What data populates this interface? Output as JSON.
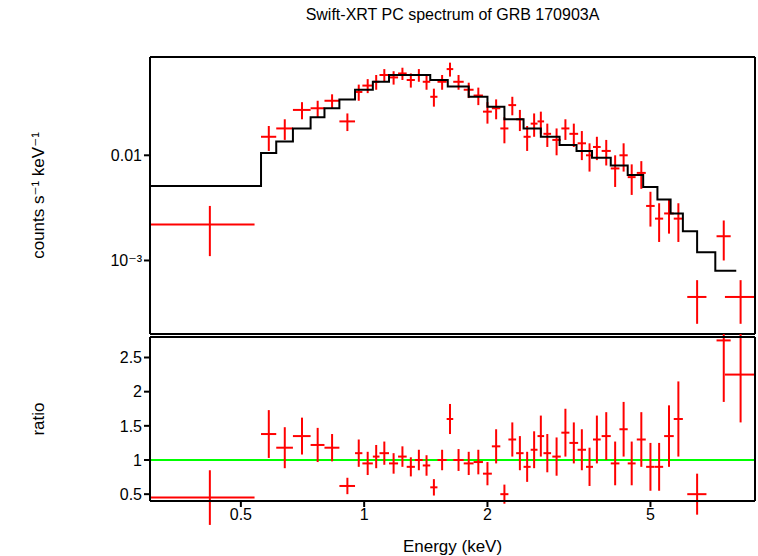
{
  "chart_data": [
    {
      "type": "scatter",
      "title": "Swift-XRT PC spectrum of GRB 170903A",
      "y_label": "counts s⁻¹ keV⁻¹",
      "log": true,
      "xlim": [
        0.3,
        9
      ],
      "xticks": [
        0.5,
        1,
        2,
        5
      ],
      "ylim": [
        0.0002,
        0.086
      ],
      "yticks": [
        {
          "value": 0.001,
          "label": "10⁻³"
        },
        0.01
      ],
      "tick_labels": "y",
      "grid": false,
      "series": [
        {
          "type": "scatter",
          "color": "#ff0000",
          "marker": "cross",
          "x": [
            0.42,
            0.585,
            0.64,
            0.705,
            0.77,
            0.835,
            0.91,
            0.97,
            1.02,
            1.07,
            1.12,
            1.18,
            1.24,
            1.3,
            1.36,
            1.42,
            1.48,
            1.55,
            1.62,
            1.7,
            1.8,
            1.9,
            2.0,
            2.1,
            2.2,
            2.3,
            2.4,
            2.5,
            2.6,
            2.7,
            2.8,
            2.95,
            3.1,
            3.25,
            3.4,
            3.55,
            3.7,
            3.9,
            4.1,
            4.3,
            4.5,
            4.75,
            5.0,
            5.25,
            5.55,
            5.85,
            6.5,
            7.55,
            8.3
          ],
          "x_err": [
            0.12,
            0.025,
            0.03,
            0.035,
            0.03,
            0.035,
            0.04,
            0.02,
            0.03,
            0.02,
            0.03,
            0.03,
            0.03,
            0.03,
            0.03,
            0.03,
            0.03,
            0.04,
            0.03,
            0.05,
            0.05,
            0.05,
            0.05,
            0.05,
            0.05,
            0.05,
            0.05,
            0.05,
            0.05,
            0.05,
            0.06,
            0.07,
            0.07,
            0.08,
            0.08,
            0.07,
            0.08,
            0.1,
            0.1,
            0.1,
            0.1,
            0.12,
            0.12,
            0.12,
            0.15,
            0.15,
            0.35,
            0.3,
            0.7
          ],
          "values": [
            0.0022,
            0.015,
            0.018,
            0.027,
            0.028,
            0.033,
            0.021,
            0.04,
            0.046,
            0.05,
            0.058,
            0.055,
            0.06,
            0.052,
            0.058,
            0.05,
            0.036,
            0.05,
            0.066,
            0.05,
            0.042,
            0.037,
            0.026,
            0.028,
            0.018,
            0.03,
            0.022,
            0.015,
            0.02,
            0.021,
            0.016,
            0.014,
            0.018,
            0.016,
            0.013,
            0.01,
            0.012,
            0.011,
            0.0075,
            0.01,
            0.0062,
            0.0068,
            0.0033,
            0.0025,
            0.0028,
            0.0025,
            0.00045,
            0.0017,
            0.00045
          ],
          "y_err": [
            0.0011,
            0.004,
            0.004,
            0.005,
            0.005,
            0.005,
            0.004,
            0.007,
            0.007,
            0.008,
            0.008,
            0.008,
            0.008,
            0.008,
            0.008,
            0.008,
            0.007,
            0.008,
            0.01,
            0.008,
            0.007,
            0.007,
            0.006,
            0.006,
            0.005,
            0.006,
            0.005,
            0.004,
            0.005,
            0.005,
            0.004,
            0.004,
            0.004,
            0.004,
            0.004,
            0.003,
            0.003,
            0.003,
            0.0025,
            0.003,
            0.002,
            0.002,
            0.0012,
            0.001,
            0.001,
            0.001,
            0.0002,
            0.0007,
            0.0002
          ]
        },
        {
          "type": "step",
          "color": "#000000",
          "line_style": "solid",
          "bins": [
            0.3,
            0.56,
            0.61,
            0.67,
            0.74,
            0.8,
            0.87,
            0.95,
            1.05,
            1.15,
            1.3,
            1.45,
            1.6,
            1.8,
            2.0,
            2.2,
            2.45,
            2.7,
            3.0,
            3.3,
            3.6,
            4.0,
            4.4,
            4.8,
            5.2,
            5.6,
            6.0,
            6.5,
            7.2,
            8.1
          ],
          "values": [
            0.0051,
            0.0105,
            0.0135,
            0.018,
            0.023,
            0.028,
            0.034,
            0.042,
            0.05,
            0.058,
            0.058,
            0.052,
            0.045,
            0.036,
            0.029,
            0.022,
            0.018,
            0.015,
            0.0125,
            0.011,
            0.0095,
            0.008,
            0.0065,
            0.005,
            0.0038,
            0.0028,
            0.0019,
            0.0012,
            0.0008
          ]
        }
      ]
    },
    {
      "type": "scatter",
      "x_label": "Energy (keV)",
      "y_label": "ratio",
      "log": "x",
      "xlim": [
        0.3,
        9
      ],
      "xticks": [
        0.5,
        1,
        2,
        5
      ],
      "ylim": [
        0.4,
        2.8
      ],
      "yticks": [
        0.5,
        1,
        1.5,
        2,
        2.5
      ],
      "grid": false,
      "reference_line": {
        "value": 1,
        "color": "#00ff00"
      },
      "series": [
        {
          "type": "scatter",
          "color": "#ff0000",
          "marker": "cross",
          "x": [
            0.42,
            0.585,
            0.64,
            0.705,
            0.77,
            0.835,
            0.91,
            0.97,
            1.02,
            1.07,
            1.12,
            1.18,
            1.24,
            1.3,
            1.36,
            1.42,
            1.48,
            1.55,
            1.62,
            1.7,
            1.8,
            1.9,
            2.0,
            2.1,
            2.2,
            2.3,
            2.4,
            2.5,
            2.6,
            2.7,
            2.8,
            2.95,
            3.1,
            3.25,
            3.4,
            3.55,
            3.7,
            3.9,
            4.1,
            4.3,
            4.5,
            4.75,
            5.0,
            5.25,
            5.55,
            5.85,
            6.5,
            7.55,
            8.3
          ],
          "x_err": [
            0.12,
            0.025,
            0.03,
            0.035,
            0.03,
            0.035,
            0.04,
            0.02,
            0.03,
            0.02,
            0.03,
            0.03,
            0.03,
            0.03,
            0.03,
            0.03,
            0.03,
            0.04,
            0.03,
            0.05,
            0.05,
            0.05,
            0.05,
            0.05,
            0.05,
            0.05,
            0.05,
            0.05,
            0.05,
            0.05,
            0.06,
            0.07,
            0.07,
            0.08,
            0.08,
            0.07,
            0.08,
            0.1,
            0.1,
            0.1,
            0.1,
            0.12,
            0.12,
            0.12,
            0.15,
            0.15,
            0.35,
            0.3,
            0.7
          ],
          "values": [
            0.45,
            1.38,
            1.18,
            1.35,
            1.22,
            1.18,
            0.62,
            1.1,
            0.95,
            1.05,
            1.1,
            0.95,
            1.05,
            0.9,
            1.0,
            0.92,
            0.6,
            1.0,
            1.6,
            1.0,
            0.95,
            0.97,
            0.8,
            1.2,
            0.5,
            1.3,
            1.1,
            0.9,
            1.15,
            1.35,
            1.1,
            1.05,
            1.4,
            1.25,
            1.15,
            0.9,
            1.3,
            1.35,
            0.95,
            1.45,
            0.95,
            1.3,
            0.9,
            0.9,
            1.35,
            1.6,
            0.5,
            2.75,
            2.25
          ],
          "y_err": [
            0.4,
            0.35,
            0.3,
            0.27,
            0.25,
            0.2,
            0.12,
            0.2,
            0.17,
            0.17,
            0.17,
            0.15,
            0.15,
            0.14,
            0.15,
            0.15,
            0.12,
            0.15,
            0.22,
            0.16,
            0.17,
            0.18,
            0.17,
            0.25,
            0.14,
            0.25,
            0.25,
            0.22,
            0.27,
            0.3,
            0.28,
            0.28,
            0.35,
            0.3,
            0.3,
            0.28,
            0.35,
            0.35,
            0.32,
            0.4,
            0.32,
            0.4,
            0.35,
            0.35,
            0.45,
            0.55,
            0.3,
            0.9,
            0.7
          ]
        }
      ]
    }
  ]
}
